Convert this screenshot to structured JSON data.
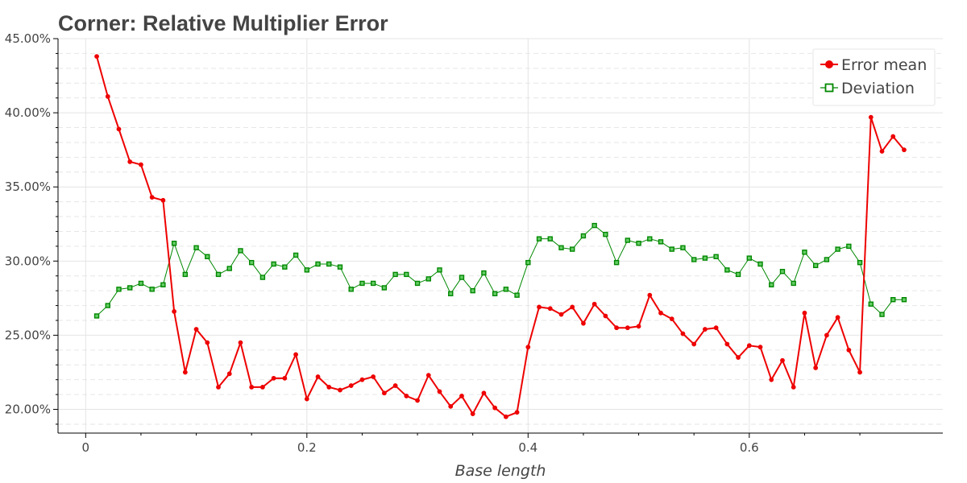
{
  "chart_data": {
    "type": "line",
    "title": "Corner: Relative Multiplier Error",
    "xlabel": "Base length",
    "ylabel": "",
    "xlim": [
      -0.025,
      0.775
    ],
    "ylim": [
      18.4,
      45.0
    ],
    "x_ticks": [
      0,
      0.2,
      0.4,
      0.6
    ],
    "x_tick_labels": [
      "0",
      "0.2",
      "0.4",
      "0.6"
    ],
    "y_ticks": [
      20,
      25,
      30,
      35,
      40,
      45
    ],
    "y_tick_labels": [
      "20.00%",
      "25.00%",
      "30.00%",
      "35.00%",
      "40.00%",
      "45.00%"
    ],
    "grid": true,
    "legend_position": "top-right",
    "x": [
      0.01,
      0.02,
      0.03,
      0.04,
      0.05,
      0.06,
      0.07,
      0.08,
      0.09,
      0.1,
      0.11,
      0.12,
      0.13,
      0.14,
      0.15,
      0.16,
      0.17,
      0.18,
      0.19,
      0.2,
      0.21,
      0.22,
      0.23,
      0.24,
      0.25,
      0.26,
      0.27,
      0.28,
      0.29,
      0.3,
      0.31,
      0.32,
      0.33,
      0.34,
      0.35,
      0.36,
      0.37,
      0.38,
      0.39,
      0.4,
      0.41,
      0.42,
      0.43,
      0.44,
      0.45,
      0.46,
      0.47,
      0.48,
      0.49,
      0.5,
      0.51,
      0.52,
      0.53,
      0.54,
      0.55,
      0.56,
      0.57,
      0.58,
      0.59,
      0.6,
      0.61,
      0.62,
      0.63,
      0.64,
      0.65,
      0.66,
      0.67,
      0.68,
      0.69,
      0.7,
      0.71,
      0.72,
      0.73,
      0.74
    ],
    "series": [
      {
        "name": "Error mean",
        "color": "#ee0000",
        "marker": "circle",
        "values": [
          43.8,
          41.1,
          38.9,
          36.7,
          36.5,
          34.3,
          34.1,
          26.6,
          22.5,
          25.4,
          24.5,
          21.5,
          22.4,
          24.5,
          21.5,
          21.5,
          22.1,
          22.1,
          23.7,
          20.7,
          22.2,
          21.5,
          21.3,
          21.6,
          22.0,
          22.2,
          21.1,
          21.6,
          20.9,
          20.6,
          22.3,
          21.2,
          20.2,
          20.9,
          19.7,
          21.1,
          20.1,
          19.5,
          19.8,
          24.2,
          26.9,
          26.8,
          26.4,
          26.9,
          25.8,
          27.1,
          26.3,
          25.5,
          25.5,
          25.6,
          27.7,
          26.5,
          26.1,
          25.1,
          24.4,
          25.4,
          25.5,
          24.4,
          23.5,
          24.3,
          24.2,
          22.0,
          23.3,
          21.5,
          26.5,
          22.8,
          25.0,
          26.2,
          24.0,
          22.5,
          39.7,
          37.4,
          38.4,
          37.5
        ]
      },
      {
        "name": "Deviation",
        "color": "#008800",
        "marker": "square",
        "values": [
          26.3,
          27.0,
          28.1,
          28.2,
          28.5,
          28.1,
          28.4,
          31.2,
          29.1,
          30.9,
          30.3,
          29.1,
          29.5,
          30.7,
          29.9,
          28.9,
          29.8,
          29.6,
          30.4,
          29.4,
          29.8,
          29.8,
          29.6,
          28.1,
          28.5,
          28.5,
          28.2,
          29.1,
          29.1,
          28.5,
          28.8,
          29.4,
          27.8,
          28.9,
          28.0,
          29.2,
          27.8,
          28.1,
          27.7,
          29.9,
          31.5,
          31.5,
          30.9,
          30.8,
          31.7,
          32.4,
          31.8,
          29.9,
          31.4,
          31.2,
          31.5,
          31.3,
          30.8,
          30.9,
          30.1,
          30.2,
          30.3,
          29.4,
          29.1,
          30.2,
          29.8,
          28.4,
          29.3,
          28.5,
          30.6,
          29.7,
          30.1,
          30.8,
          31.0,
          29.9,
          27.1,
          26.4,
          27.4,
          27.4
        ]
      }
    ]
  }
}
